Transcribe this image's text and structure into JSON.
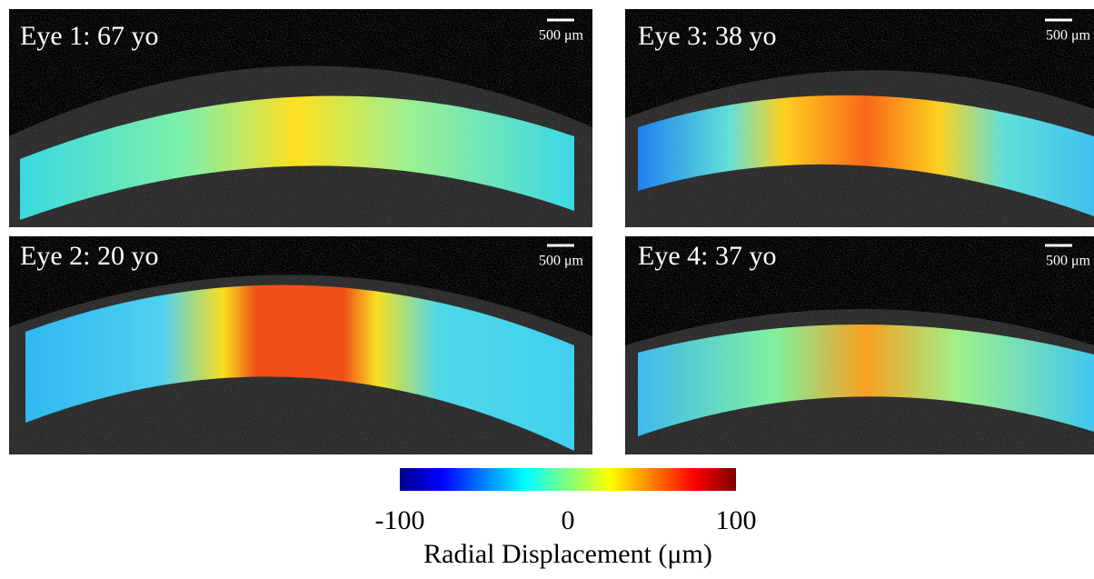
{
  "panels": [
    {
      "label": "Eye 1: 67 yo",
      "scale_bar": "500 μm"
    },
    {
      "label": "Eye 3: 38 yo",
      "scale_bar": "500 μm"
    },
    {
      "label": "Eye 2: 20 yo",
      "scale_bar": "500 μm"
    },
    {
      "label": "Eye 4: 37 yo",
      "scale_bar": "500 μm"
    }
  ],
  "colorbar": {
    "colormap": "jet",
    "range": [
      -100,
      100
    ],
    "ticks": [
      -100,
      0,
      100
    ],
    "label": "Radial Displacement (μm)"
  }
}
